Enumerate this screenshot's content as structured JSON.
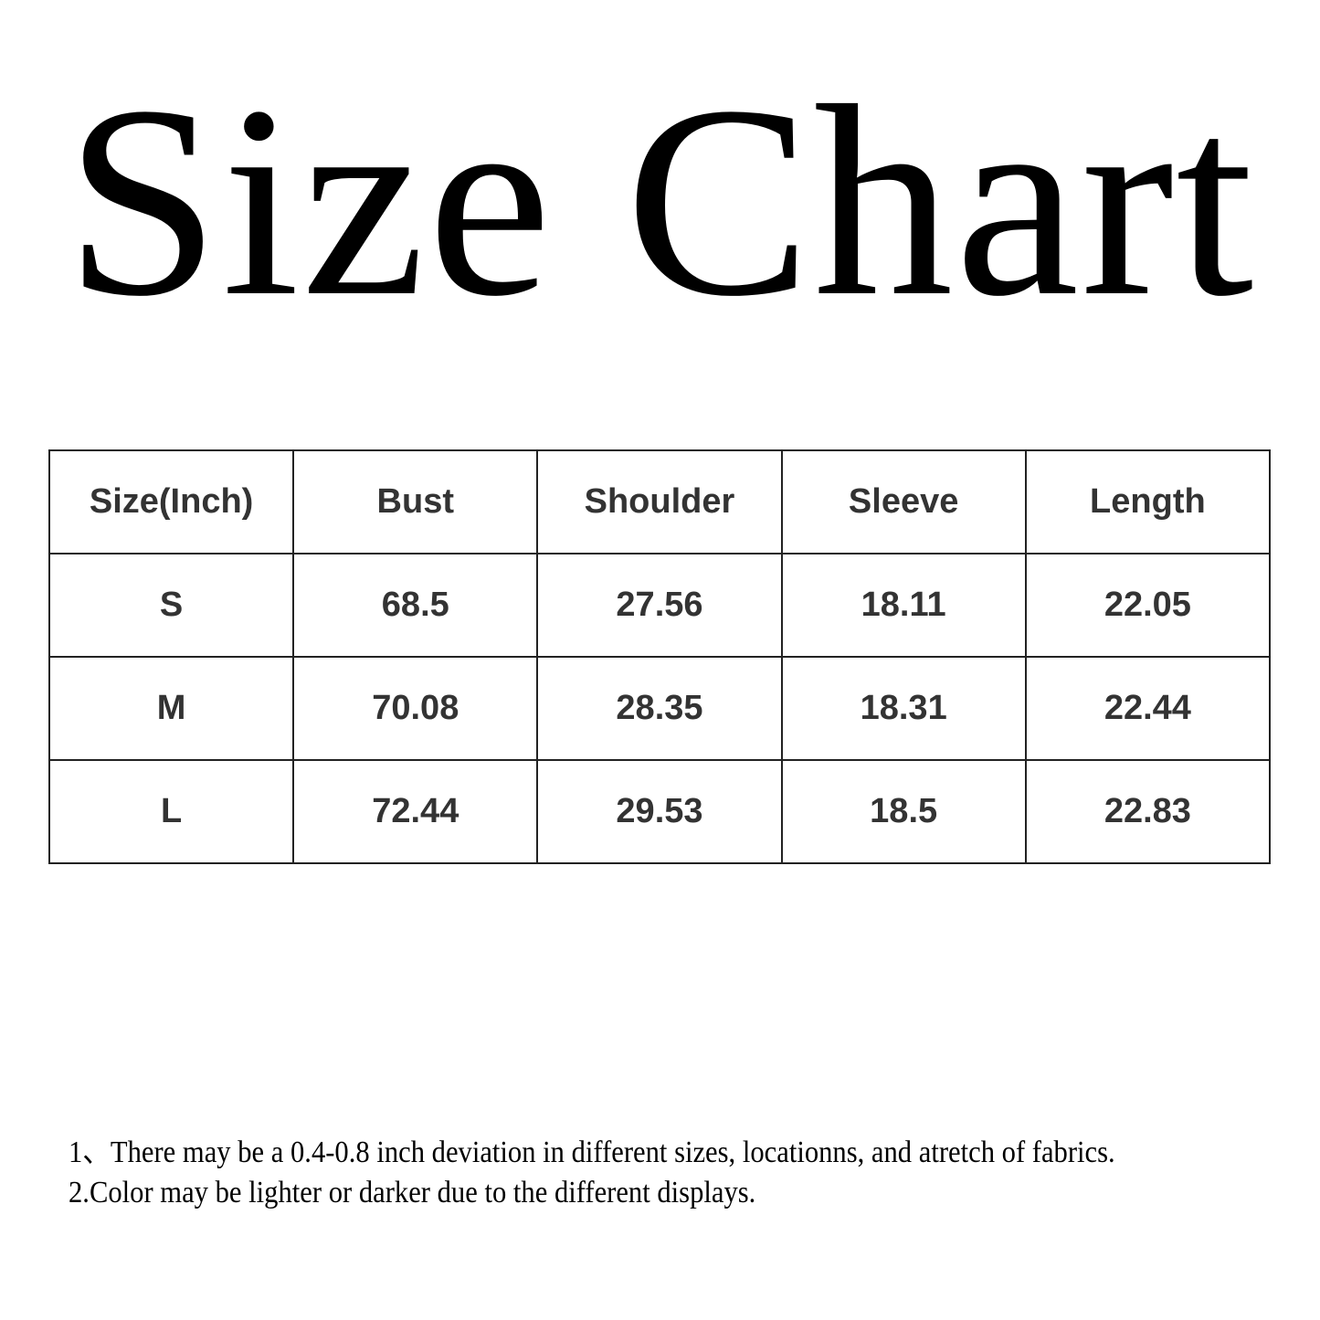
{
  "title": "Size Chart",
  "table": {
    "headers": [
      "Size(Inch)",
      "Bust",
      "Shoulder",
      "Sleeve",
      "Length"
    ],
    "rows": [
      [
        "S",
        "68.5",
        "27.56",
        "18.11",
        "22.05"
      ],
      [
        "M",
        "70.08",
        "28.35",
        "18.31",
        "22.44"
      ],
      [
        "L",
        "72.44",
        "29.53",
        "18.5",
        "22.83"
      ]
    ]
  },
  "notes": [
    "1、There may be a 0.4-0.8 inch deviation in different sizes, locationns, and atretch of fabrics.",
    "2.Color may be lighter or darker due to the different displays."
  ]
}
